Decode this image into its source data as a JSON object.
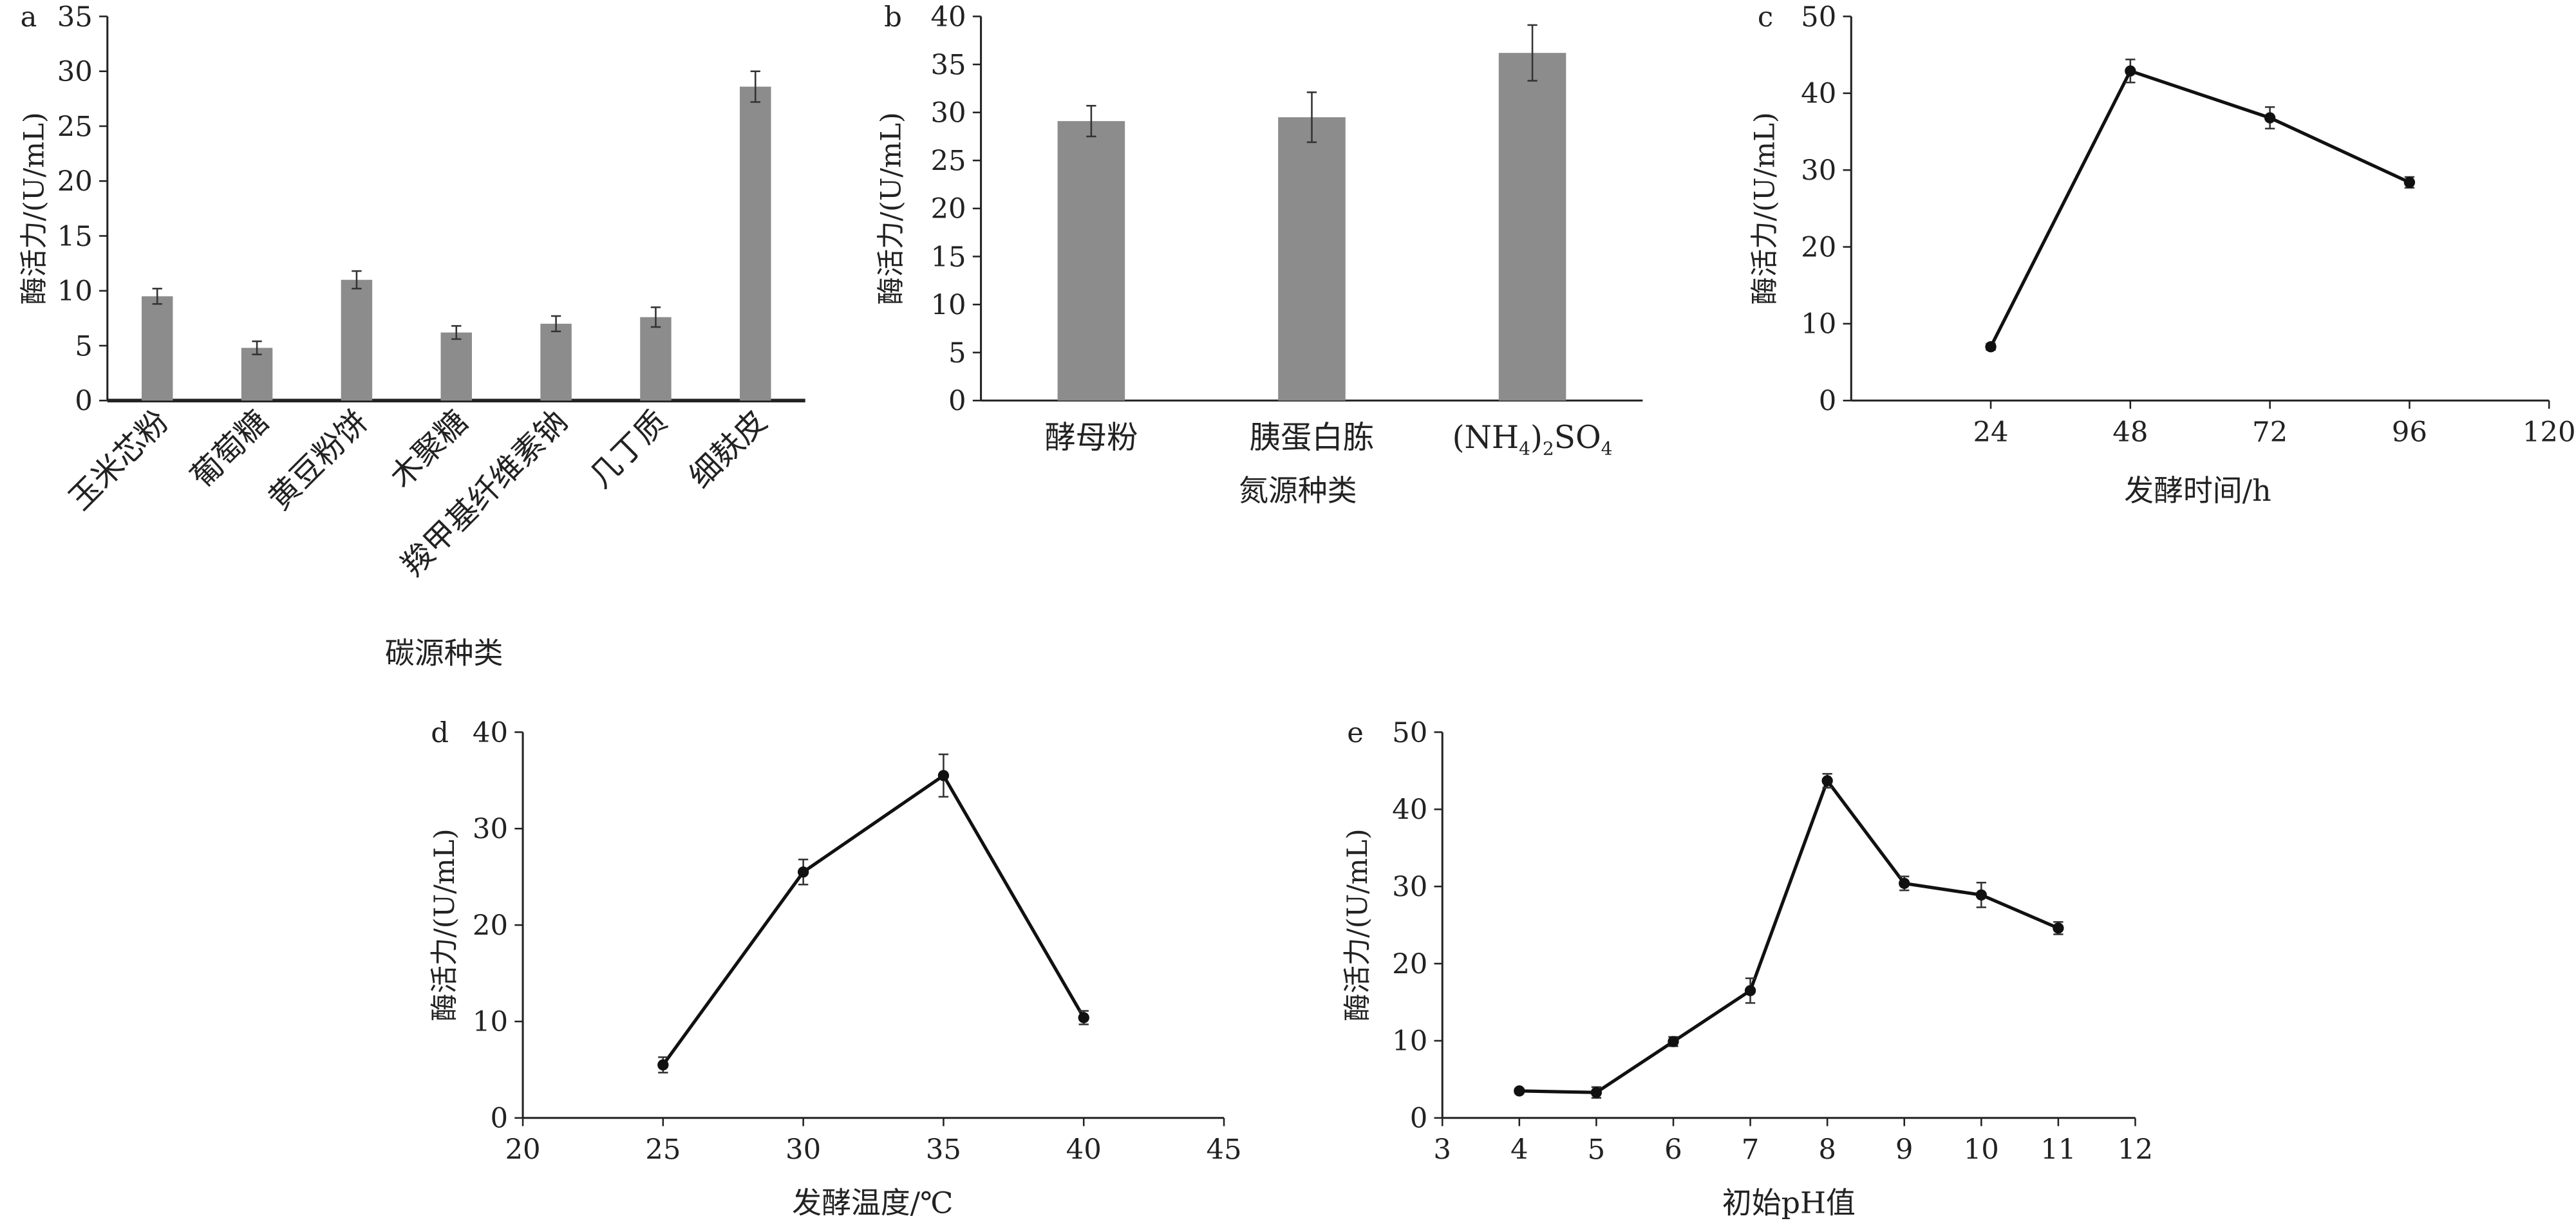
{
  "figure": {
    "panels": [
      {
        "panel_label": "a",
        "chart_data": {
          "type": "bar",
          "categories": [
            "玉米芯粉",
            "葡萄糖",
            "黄豆粉饼",
            "木聚糖",
            "羧甲基纤维素钠",
            "几丁质",
            "细麸皮"
          ],
          "values": [
            9.5,
            4.8,
            11.0,
            6.2,
            7.0,
            7.6,
            28.6
          ],
          "errors": [
            0.7,
            0.6,
            0.8,
            0.6,
            0.7,
            0.9,
            1.4
          ],
          "xlabel": "碳源种类",
          "ylabel": "酶活力/(U/mL)",
          "ylim": [
            0,
            35
          ],
          "yticks": [
            0,
            5,
            10,
            15,
            20,
            25,
            30,
            35
          ],
          "grid": false,
          "color": "#8c8c8c"
        }
      },
      {
        "panel_label": "b",
        "chart_data": {
          "type": "bar",
          "categories": [
            "酵母粉",
            "胰蛋白胨",
            "(NH4)2SO4"
          ],
          "values": [
            29.1,
            29.5,
            36.2
          ],
          "errors": [
            1.6,
            2.6,
            2.9
          ],
          "xlabel": "氮源种类",
          "ylabel": "酶活力/(U/mL)",
          "ylim": [
            0,
            40
          ],
          "yticks": [
            0,
            5,
            10,
            15,
            20,
            25,
            30,
            35,
            40
          ],
          "grid": false,
          "color": "#8c8c8c"
        }
      },
      {
        "panel_label": "c",
        "chart_data": {
          "type": "line",
          "x": [
            24,
            48,
            72,
            96
          ],
          "y": [
            7.0,
            42.9,
            36.8,
            28.4
          ],
          "errors": [
            0.4,
            1.5,
            1.4,
            0.7
          ],
          "xlabel": "发酵时间/h",
          "ylabel": "酶活力/(U/mL)",
          "xlim": [
            0,
            120
          ],
          "xticks": [
            24,
            48,
            72,
            96,
            120
          ],
          "ylim": [
            0,
            50
          ],
          "yticks": [
            0,
            10,
            20,
            30,
            40,
            50
          ],
          "grid": false
        }
      },
      {
        "panel_label": "d",
        "chart_data": {
          "type": "line",
          "x": [
            25,
            30,
            35,
            40
          ],
          "y": [
            5.5,
            25.5,
            35.5,
            10.4
          ],
          "errors": [
            0.8,
            1.3,
            2.2,
            0.7
          ],
          "xlabel": "发酵温度/℃",
          "ylabel": "酶活力/(U/mL)",
          "xlim": [
            20,
            45
          ],
          "xticks": [
            20,
            25,
            30,
            35,
            40,
            45
          ],
          "ylim": [
            0,
            40
          ],
          "yticks": [
            0,
            10,
            20,
            30,
            40
          ],
          "grid": false
        }
      },
      {
        "panel_label": "e",
        "chart_data": {
          "type": "line",
          "x": [
            4,
            5,
            6,
            7,
            8,
            9,
            10,
            11
          ],
          "y": [
            3.5,
            3.3,
            9.9,
            16.5,
            43.7,
            30.4,
            28.9,
            24.6
          ],
          "errors": [
            0.3,
            0.7,
            0.6,
            1.6,
            0.9,
            0.9,
            1.6,
            0.8
          ],
          "xlabel": "初始pH值",
          "ylabel": "酶活力/(U/mL)",
          "xlim": [
            3,
            12
          ],
          "xticks": [
            3,
            4,
            5,
            6,
            7,
            8,
            9,
            10,
            11,
            12
          ],
          "ylim": [
            0,
            50
          ],
          "yticks": [
            0,
            10,
            20,
            30,
            40,
            50
          ],
          "grid": false
        }
      }
    ]
  }
}
